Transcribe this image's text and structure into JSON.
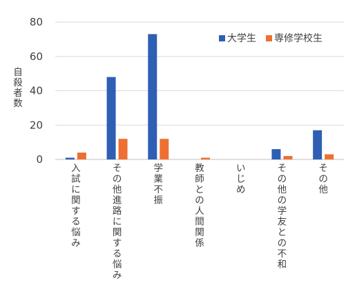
{
  "chart_data": {
    "type": "bar",
    "title": "",
    "xlabel": "",
    "ylabel": "自殺者数",
    "ylim": [
      0,
      80
    ],
    "yticks": [
      0,
      20,
      40,
      60,
      80
    ],
    "grid": true,
    "legend_position": "top-right",
    "categories": [
      "入試に関する悩み",
      "その他進路に関する悩み",
      "学業不振",
      "教師との人間関係",
      "いじめ",
      "その他の学友との不和",
      "その他"
    ],
    "series": [
      {
        "name": "大学生",
        "color": "#2e5fb4",
        "values": [
          1,
          48,
          73,
          0,
          0,
          6,
          17
        ]
      },
      {
        "name": "専修学校生",
        "color": "#ed7032",
        "values": [
          4,
          12,
          12,
          1,
          0,
          2,
          3
        ]
      }
    ]
  }
}
